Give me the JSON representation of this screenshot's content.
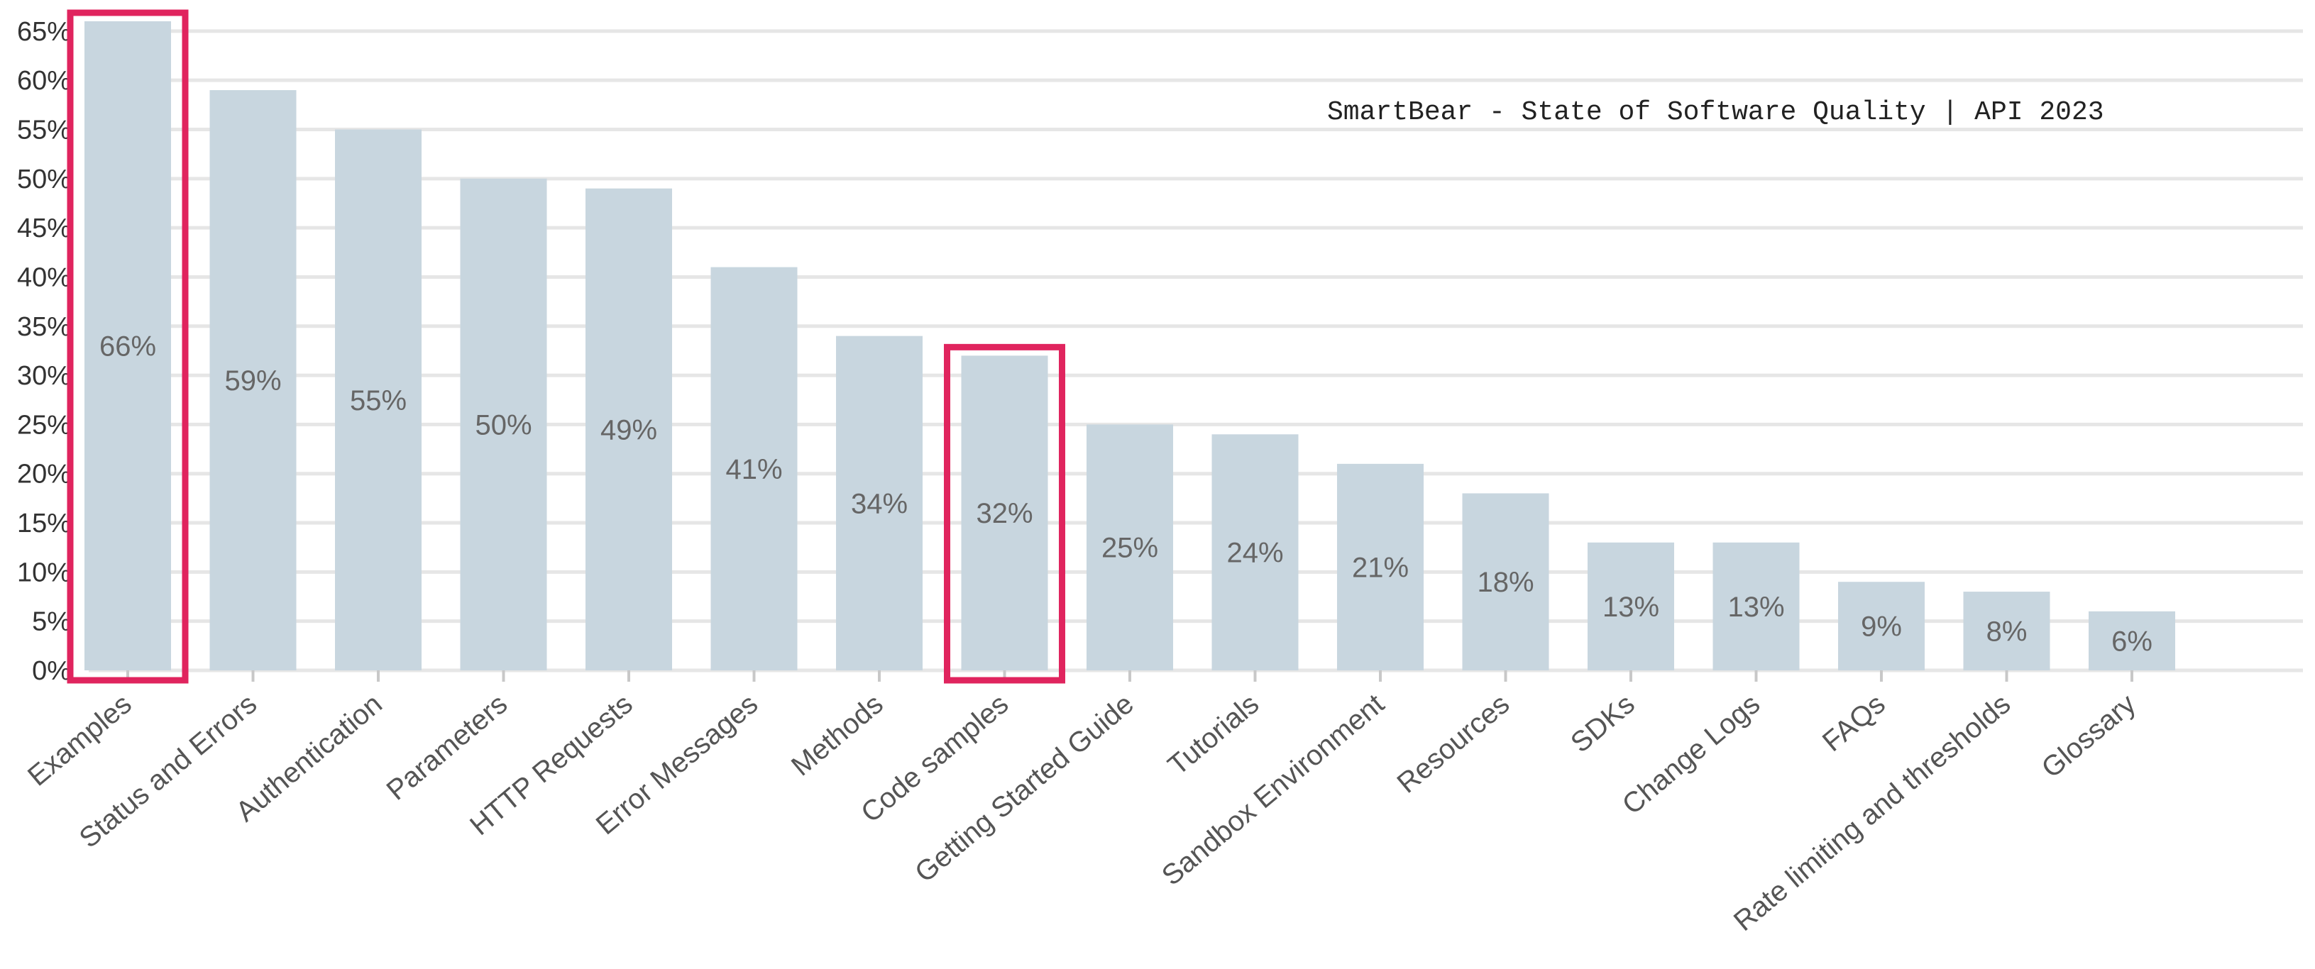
{
  "chart_data": {
    "type": "bar",
    "categories": [
      "Examples",
      "Status and Errors",
      "Authentication",
      "Parameters",
      "HTTP Requests",
      "Error Messages",
      "Methods",
      "Code samples",
      "Getting Started Guide",
      "Tutorials",
      "Sandbox Environment",
      "Resources",
      "SDKs",
      "Change Logs",
      "FAQs",
      "Rate limiting and thresholds",
      "Glossary"
    ],
    "values": [
      66,
      59,
      55,
      50,
      49,
      41,
      34,
      32,
      25,
      24,
      21,
      18,
      13,
      13,
      9,
      8,
      6
    ],
    "data_labels": [
      "66%",
      "59%",
      "55%",
      "50%",
      "49%",
      "41%",
      "34%",
      "32%",
      "25%",
      "24%",
      "21%",
      "18%",
      "13%",
      "13%",
      "9%",
      "8%",
      "6%"
    ],
    "y_ticks": [
      "0%",
      "5%",
      "10%",
      "15%",
      "20%",
      "25%",
      "30%",
      "35%",
      "40%",
      "45%",
      "50%",
      "55%",
      "60%",
      "65%"
    ],
    "ylim": [
      0,
      66
    ],
    "unit": "%",
    "grid": true,
    "highlighted": [
      "Examples",
      "Code samples"
    ],
    "annotation": "SmartBear - State of Software Quality | API 2023",
    "colors": {
      "bar": "#c8d6df",
      "highlight": "#e0245e",
      "grid": "#e6e6e6"
    },
    "title": "",
    "xlabel": "",
    "ylabel": ""
  }
}
